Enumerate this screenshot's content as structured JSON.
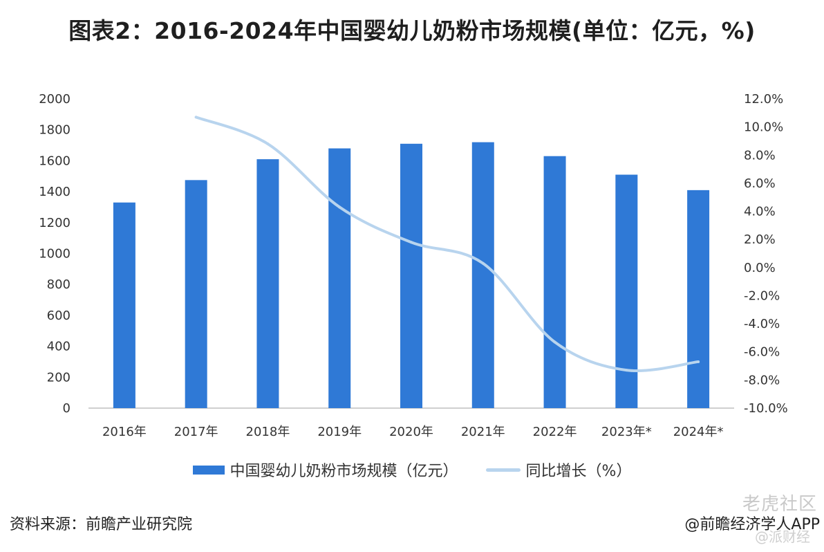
{
  "title": "图表2：2016-2024年中国婴幼儿奶粉市场规模(单位：亿元，%)",
  "chart_data": {
    "type": "bar",
    "title": "图表2：2016-2024年中国婴幼儿奶粉市场规模(单位：亿元，%)",
    "categories": [
      "2016年",
      "2017年",
      "2018年",
      "2019年",
      "2020年",
      "2021年",
      "2022年",
      "2023年*",
      "2024年*"
    ],
    "series": [
      {
        "name": "中国婴幼儿奶粉市场规模（亿元）",
        "type": "bar",
        "axis": "left",
        "values": [
          1330,
          1475,
          1610,
          1680,
          1710,
          1720,
          1630,
          1510,
          1410
        ]
      },
      {
        "name": "同比增长（%）",
        "type": "line",
        "axis": "right",
        "values": [
          null,
          10.7,
          8.8,
          4.3,
          1.8,
          0.3,
          -5.3,
          -7.3,
          -6.7
        ]
      }
    ],
    "y_left": {
      "min": 0,
      "max": 2000,
      "ticks": [
        "0",
        "200",
        "400",
        "600",
        "800",
        "1000",
        "1200",
        "1400",
        "1600",
        "1800",
        "2000"
      ]
    },
    "y_right": {
      "min": -10,
      "max": 12,
      "ticks": [
        "-10.0%",
        "-8.0%",
        "-6.0%",
        "-4.0%",
        "-2.0%",
        "0.0%",
        "2.0%",
        "4.0%",
        "6.0%",
        "8.0%",
        "10.0%",
        "12.0%"
      ]
    },
    "grid": false,
    "legend_position": "bottom",
    "colors": {
      "bar": "#2f79d6",
      "line": "#b8d4ee",
      "axis": "#bfbfbf"
    }
  },
  "footer": {
    "source": "资料来源：前瞻产业研究院",
    "credit": "@前瞻经济学人APP",
    "watermark_1": "老虎社区",
    "watermark_2": "@派财经"
  }
}
